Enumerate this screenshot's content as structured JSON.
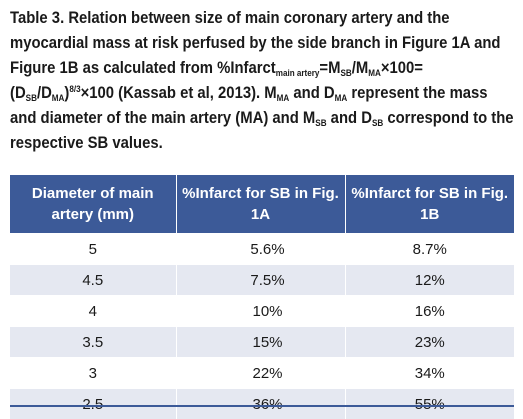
{
  "caption": {
    "p1": "Table 3. Relation between size of main coronary artery and the myocardial mass at risk perfused by the side branch in Figure 1A and Figure 1B as calculated from %Infarct",
    "sub_main_artery": "main artery",
    "p2": "=M",
    "sub_sb_1": "SB",
    "p3": "/M",
    "sub_ma_1": "MA",
    "p4": "×100= (D",
    "sub_sb_2": "SB",
    "p5": "/D",
    "sub_ma_2": "MA",
    "p6": ")",
    "sup_exp": "8/3",
    "p7": "×100 (Kassab et al, 2013). M",
    "sub_ma_3": "MA",
    "p8": " and D",
    "sub_ma_4": "MA",
    "p9": " represent the mass and diameter of the main artery (MA) and M",
    "sub_sb_3": "SB",
    "p10": " and D",
    "sub_sb_4": "SB",
    "p11": " correspond to the respective SB values."
  },
  "table": {
    "headers": [
      "Diameter of main artery (mm)",
      "%Infarct for SB in Fig. 1A",
      "%Infarct for SB in Fig. 1B"
    ],
    "rows": [
      [
        "5",
        "5.6%",
        "8.7%"
      ],
      [
        "4.5",
        "7.5%",
        "12%"
      ],
      [
        "4",
        "10%",
        "16%"
      ],
      [
        "3.5",
        "15%",
        "23%"
      ],
      [
        "3",
        "22%",
        "34%"
      ],
      [
        "2.5",
        "36%",
        "55%"
      ]
    ]
  },
  "colors": {
    "header_bg": "#3c5a98",
    "stripe_bg": "#e5e8f1"
  }
}
